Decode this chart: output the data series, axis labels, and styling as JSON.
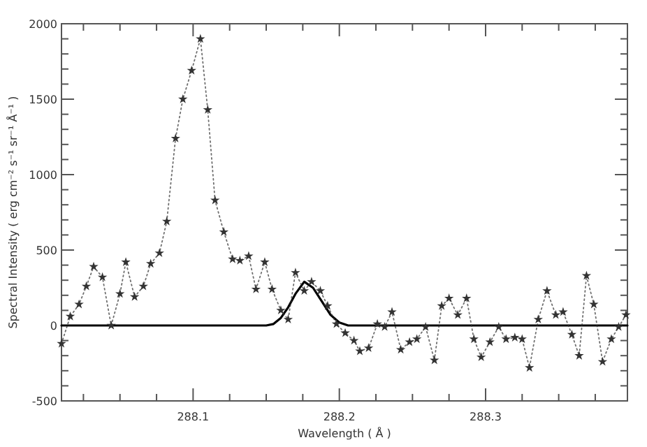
{
  "chart_data": {
    "type": "line",
    "xlabel": "Wavelength ( Å )",
    "ylabel": "Spectral Intensity ( erg cm⁻² s⁻¹ sr⁻¹ Å⁻¹ )",
    "xlim": [
      288.01,
      288.397
    ],
    "xticks": [
      {
        "value": 288.025,
        "label": null
      },
      {
        "value": 288.05,
        "label": null
      },
      {
        "value": 288.075,
        "label": null
      },
      288.1,
      {
        "value": 288.125,
        "label": null
      },
      {
        "value": 288.15,
        "label": null
      },
      {
        "value": 288.175,
        "label": null
      },
      288.2,
      {
        "value": 288.225,
        "label": null
      },
      {
        "value": 288.25,
        "label": null
      },
      {
        "value": 288.275,
        "label": null
      },
      288.3,
      {
        "value": 288.325,
        "label": null
      },
      {
        "value": 288.35,
        "label": null
      },
      {
        "value": 288.375,
        "label": null
      }
    ],
    "ylim": [
      -500,
      2000
    ],
    "yticks": [
      -500,
      {
        "value": -400,
        "label": null
      },
      {
        "value": -300,
        "label": null
      },
      {
        "value": -200,
        "label": null
      },
      {
        "value": -100,
        "label": null
      },
      0,
      {
        "value": 100,
        "label": null
      },
      {
        "value": 200,
        "label": null
      },
      {
        "value": 300,
        "label": null
      },
      {
        "value": 400,
        "label": null
      },
      500,
      {
        "value": 600,
        "label": null
      },
      {
        "value": 700,
        "label": null
      },
      {
        "value": 800,
        "label": null
      },
      {
        "value": 900,
        "label": null
      },
      1000,
      {
        "value": 1100,
        "label": null
      },
      {
        "value": 1200,
        "label": null
      },
      {
        "value": 1300,
        "label": null
      },
      {
        "value": 1400,
        "label": null
      },
      1500,
      {
        "value": 1600,
        "label": null
      },
      {
        "value": 1700,
        "label": null
      },
      {
        "value": 1800,
        "label": null
      },
      {
        "value": 1900,
        "label": null
      },
      2000
    ],
    "grid": false,
    "series": [
      {
        "color": "#000000",
        "line_style": "solid",
        "marker": "none",
        "x": [
          288.01,
          288.15,
          288.155,
          288.16,
          288.165,
          288.17,
          288.176,
          288.182,
          288.188,
          288.194,
          288.2,
          288.206,
          288.397
        ],
        "values": [
          0,
          0,
          10,
          50,
          120,
          210,
          290,
          250,
          160,
          70,
          20,
          0,
          0
        ]
      },
      {
        "color": "#333333",
        "line_style": "dotted",
        "marker": "star",
        "x": [
          288.01,
          288.016,
          288.022,
          288.027,
          288.032,
          288.038,
          288.044,
          288.05,
          288.054,
          288.06,
          288.066,
          288.071,
          288.077,
          288.082,
          288.088,
          288.093,
          288.099,
          288.105,
          288.11,
          288.115,
          288.121,
          288.127,
          288.132,
          288.138,
          288.143,
          288.149,
          288.154,
          288.16,
          288.165,
          288.17,
          288.176,
          288.181,
          288.187,
          288.192,
          288.198,
          288.204,
          288.21,
          288.214,
          288.22,
          288.226,
          288.231,
          288.236,
          288.242,
          288.248,
          288.253,
          288.259,
          288.265,
          288.27,
          288.275,
          288.281,
          288.287,
          288.292,
          288.297,
          288.303,
          288.309,
          288.314,
          288.32,
          288.325,
          288.33,
          288.336,
          288.342,
          288.348,
          288.353,
          288.359,
          288.364,
          288.369,
          288.374,
          288.38,
          288.386,
          288.391,
          288.396
        ],
        "values": [
          -120,
          60,
          140,
          260,
          390,
          320,
          0,
          210,
          420,
          190,
          260,
          410,
          480,
          690,
          1240,
          1500,
          1690,
          1900,
          1430,
          830,
          620,
          440,
          430,
          460,
          240,
          420,
          240,
          100,
          40,
          350,
          230,
          290,
          230,
          130,
          10,
          -50,
          -100,
          -170,
          -150,
          10,
          -10,
          90,
          -160,
          -110,
          -90,
          -10,
          -230,
          130,
          180,
          70,
          180,
          -90,
          -210,
          -110,
          -10,
          -90,
          -80,
          -90,
          -280,
          40,
          230,
          70,
          90,
          -60,
          -200,
          330,
          140,
          -240,
          -90,
          -10,
          70
        ]
      }
    ]
  }
}
